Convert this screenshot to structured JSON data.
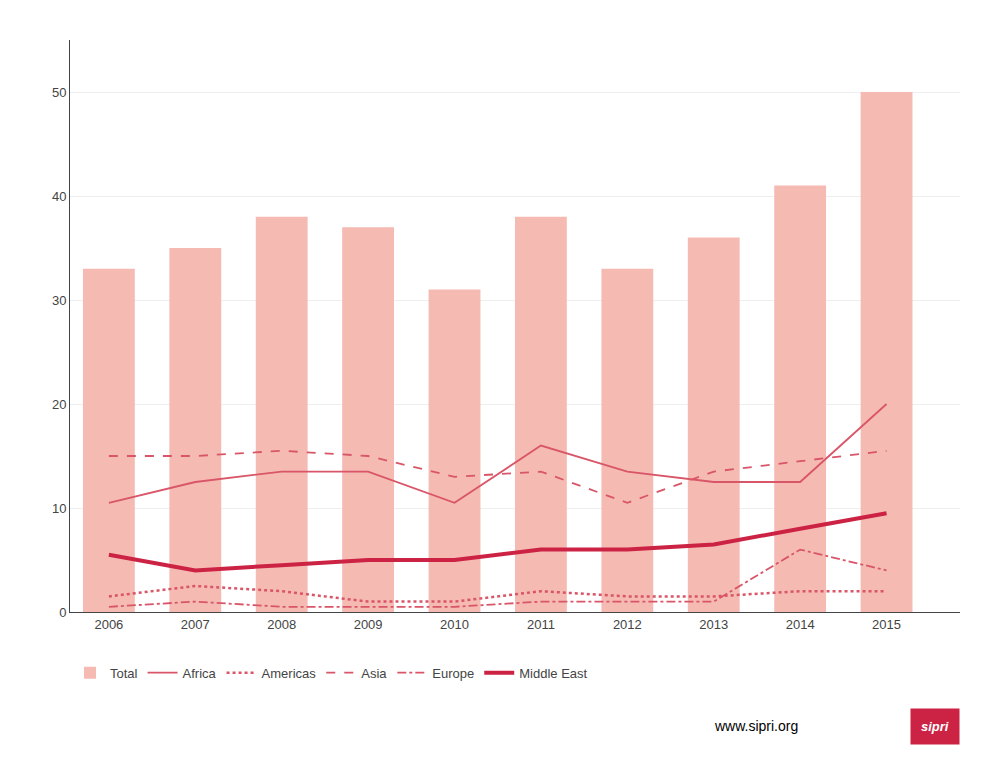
{
  "chart_data": {
    "type": "bar",
    "x": [
      2006,
      2007,
      2008,
      2009,
      2010,
      2011,
      2012,
      2013,
      2014,
      2015
    ],
    "xlim": [
      2005.55,
      2015.85
    ],
    "xticks": [
      2006,
      2007,
      2008,
      2009,
      2010,
      2011,
      2012,
      2013,
      2014,
      2015
    ],
    "ylim": [
      0,
      55
    ],
    "yticks": [
      0,
      10,
      20,
      30,
      40,
      50
    ],
    "grid": true,
    "legend": "bottom",
    "series": [
      {
        "name": "Total",
        "type": "bar",
        "color": "#f5bbb3",
        "values": [
          33,
          35,
          38,
          37,
          31,
          38,
          33,
          36,
          41,
          50
        ]
      },
      {
        "name": "Africa",
        "type": "line",
        "color": "#d95568",
        "line_style": "solid",
        "values": [
          10.5,
          12.5,
          13.5,
          13.5,
          10.5,
          16,
          13.5,
          12.5,
          12.5,
          20
        ]
      },
      {
        "name": "Americas",
        "type": "line",
        "color": "#d95568",
        "line_style": "dotted",
        "values": [
          1.5,
          2.5,
          2,
          1,
          1,
          2,
          1.5,
          1.5,
          2,
          2
        ]
      },
      {
        "name": "Asia",
        "type": "line",
        "color": "#d95568",
        "line_style": "dashed",
        "values": [
          15,
          15,
          15.5,
          15,
          13,
          13.5,
          10.5,
          13.5,
          14.5,
          15.5
        ]
      },
      {
        "name": "Europe",
        "type": "line",
        "color": "#d95568",
        "line_style": "dashdot",
        "values": [
          0.5,
          1,
          0.5,
          0.5,
          0.5,
          1,
          1,
          1,
          6,
          4
        ]
      },
      {
        "name": "Middle East",
        "type": "line",
        "color": "#cc2244",
        "line_style": "solid",
        "values": [
          5.5,
          4,
          4.5,
          5,
          5,
          6,
          6,
          6.5,
          8,
          9.5
        ]
      }
    ],
    "annotations": [
      "www.sipri.org",
      "sipri"
    ]
  }
}
